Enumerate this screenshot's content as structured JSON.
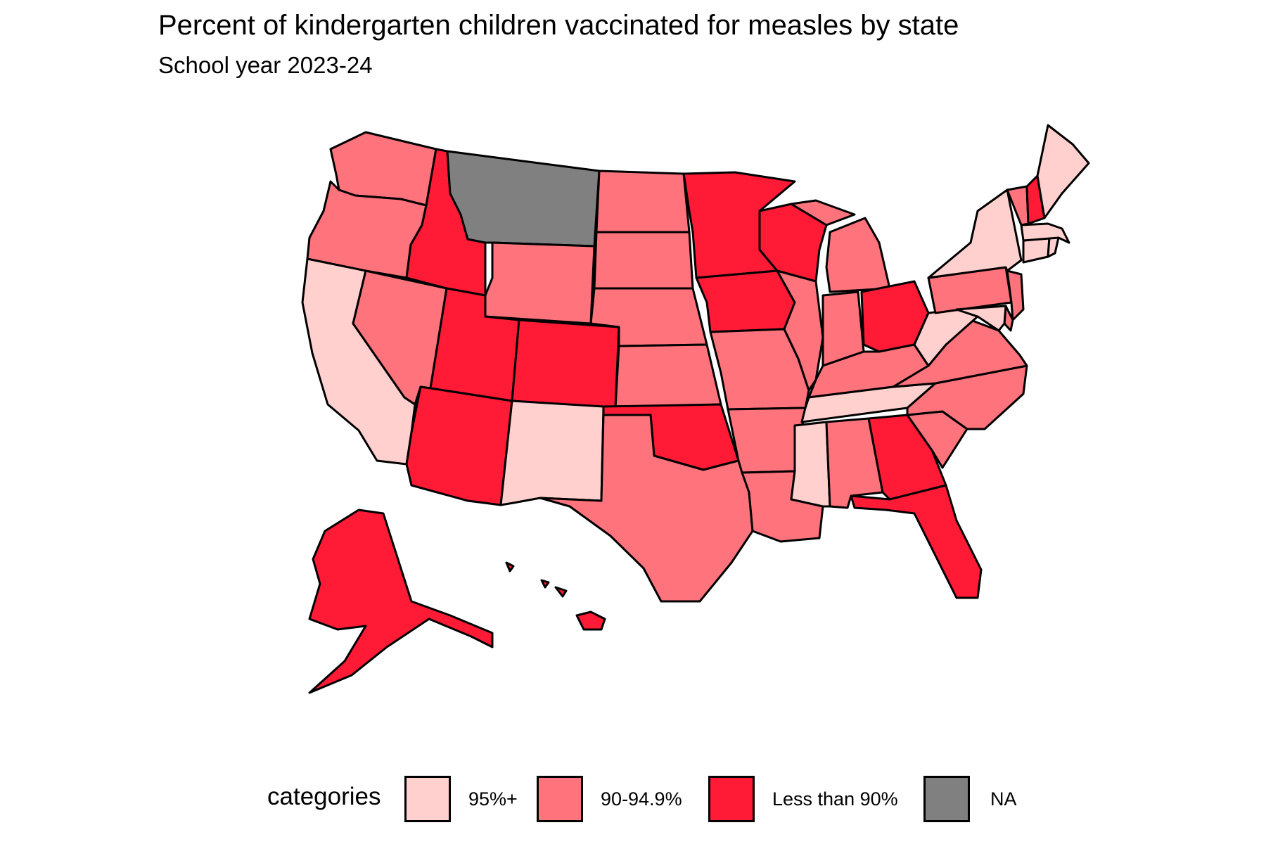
{
  "title": "Percent of kindergarten children vaccinated for measles by state",
  "subtitle": "School year 2023-24",
  "legend": {
    "title": "categories",
    "items": [
      {
        "key": "high",
        "label": "95%+",
        "color": "#FFD0CE"
      },
      {
        "key": "mid",
        "label": "90-94.9%",
        "color": "#FF737D"
      },
      {
        "key": "low",
        "label": "Less than 90%",
        "color": "#FF1A36"
      },
      {
        "key": "na",
        "label": "NA",
        "color": "#808080"
      }
    ]
  },
  "states": [
    {
      "abbr": "WA",
      "category": "mid"
    },
    {
      "abbr": "OR",
      "category": "mid"
    },
    {
      "abbr": "CA",
      "category": "high"
    },
    {
      "abbr": "NV",
      "category": "mid"
    },
    {
      "abbr": "ID",
      "category": "low"
    },
    {
      "abbr": "MT",
      "category": "na"
    },
    {
      "abbr": "WY",
      "category": "mid"
    },
    {
      "abbr": "UT",
      "category": "low"
    },
    {
      "abbr": "AZ",
      "category": "low"
    },
    {
      "abbr": "CO",
      "category": "low"
    },
    {
      "abbr": "NM",
      "category": "high"
    },
    {
      "abbr": "ND",
      "category": "mid"
    },
    {
      "abbr": "SD",
      "category": "mid"
    },
    {
      "abbr": "NE",
      "category": "mid"
    },
    {
      "abbr": "KS",
      "category": "mid"
    },
    {
      "abbr": "OK",
      "category": "low"
    },
    {
      "abbr": "TX",
      "category": "mid"
    },
    {
      "abbr": "MN",
      "category": "low"
    },
    {
      "abbr": "IA",
      "category": "low"
    },
    {
      "abbr": "MO",
      "category": "mid"
    },
    {
      "abbr": "AR",
      "category": "mid"
    },
    {
      "abbr": "LA",
      "category": "mid"
    },
    {
      "abbr": "WI",
      "category": "low"
    },
    {
      "abbr": "IL",
      "category": "mid"
    },
    {
      "abbr": "MI",
      "category": "mid"
    },
    {
      "abbr": "IN",
      "category": "mid"
    },
    {
      "abbr": "OH",
      "category": "low"
    },
    {
      "abbr": "KY",
      "category": "mid"
    },
    {
      "abbr": "TN",
      "category": "high"
    },
    {
      "abbr": "MS",
      "category": "high"
    },
    {
      "abbr": "AL",
      "category": "mid"
    },
    {
      "abbr": "GA",
      "category": "low"
    },
    {
      "abbr": "FL",
      "category": "low"
    },
    {
      "abbr": "SC",
      "category": "mid"
    },
    {
      "abbr": "NC",
      "category": "mid"
    },
    {
      "abbr": "VA",
      "category": "mid"
    },
    {
      "abbr": "WV",
      "category": "high"
    },
    {
      "abbr": "PA",
      "category": "mid"
    },
    {
      "abbr": "NY",
      "category": "high"
    },
    {
      "abbr": "NJ",
      "category": "mid"
    },
    {
      "abbr": "DE",
      "category": "mid"
    },
    {
      "abbr": "MD",
      "category": "high"
    },
    {
      "abbr": "CT",
      "category": "high"
    },
    {
      "abbr": "RI",
      "category": "high"
    },
    {
      "abbr": "MA",
      "category": "high"
    },
    {
      "abbr": "VT",
      "category": "mid"
    },
    {
      "abbr": "NH",
      "category": "low"
    },
    {
      "abbr": "ME",
      "category": "high"
    },
    {
      "abbr": "AK",
      "category": "low"
    },
    {
      "abbr": "HI",
      "category": "low"
    }
  ]
}
